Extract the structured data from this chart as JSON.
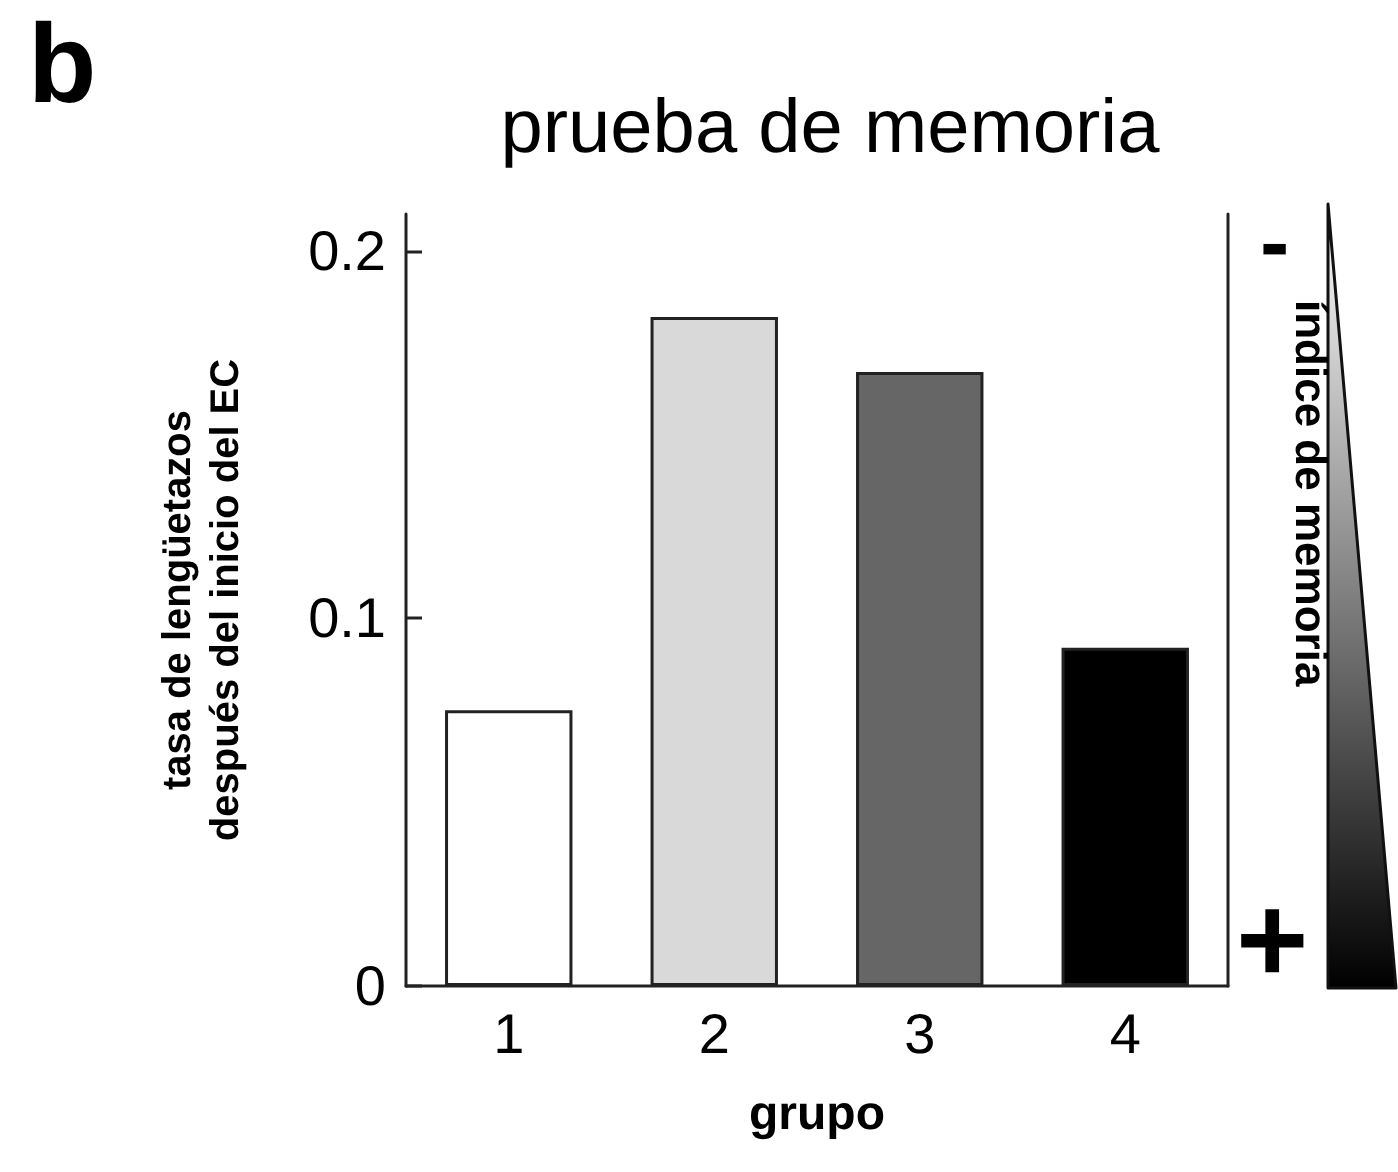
{
  "chart_data": {
    "type": "bar",
    "title": "prueba de memoria",
    "xlabel": "grupo",
    "ylabel": "tasa de lengüetazos\ndespués del inicio del EC",
    "categories": [
      "1",
      "2",
      "3",
      "4"
    ],
    "values": [
      0.075,
      0.182,
      0.167,
      0.092
    ],
    "colors": [
      "#ffffff",
      "#d9d9d9",
      "#666666",
      "#000000"
    ],
    "ylim": [
      0,
      0.21
    ],
    "yticks": [
      0,
      0.1,
      0.2
    ],
    "annotations": [
      "b",
      "-",
      "+",
      "índice de memoria"
    ]
  }
}
